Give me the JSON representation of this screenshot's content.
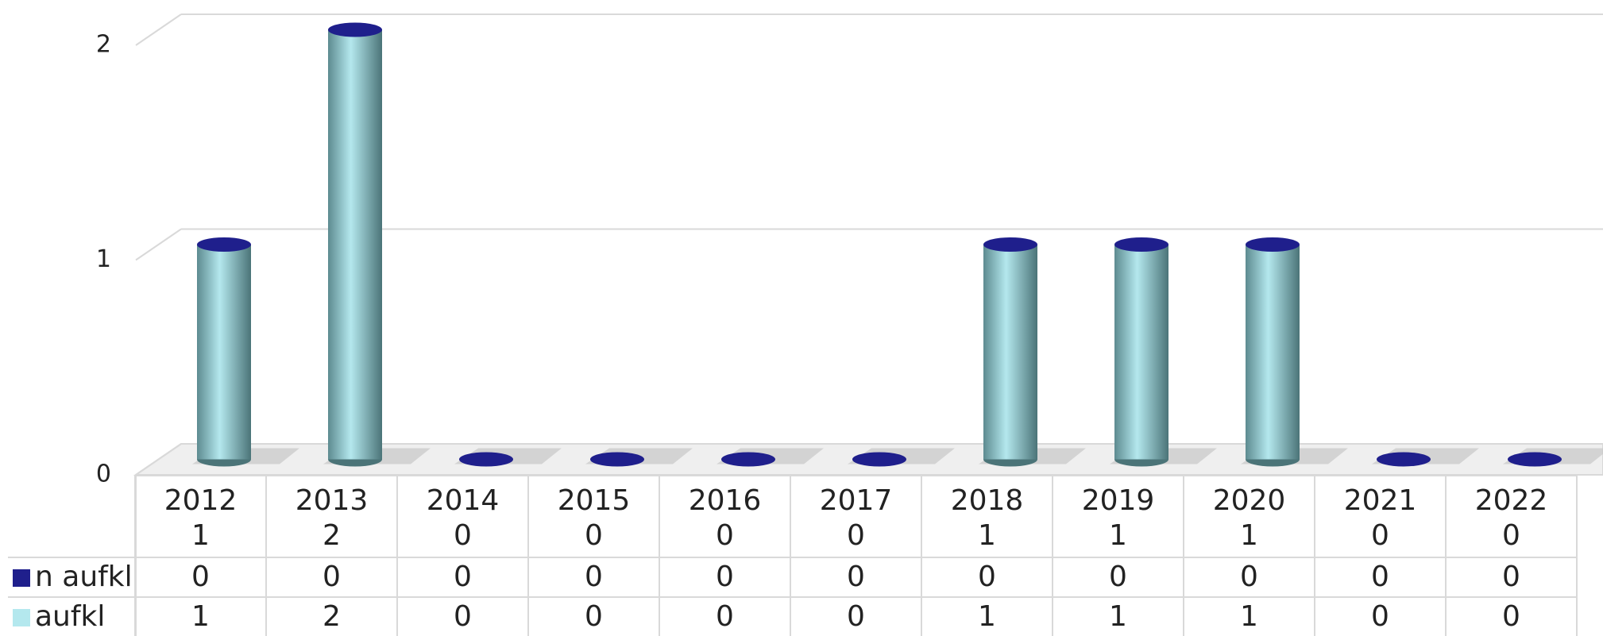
{
  "chart_data": {
    "type": "bar3d_stacked",
    "categories": [
      "2012\n1",
      "2013\n2",
      "2014\n0",
      "2015\n0",
      "2016\n0",
      "2017\n0",
      "2018\n1",
      "2019\n1",
      "2020\n1",
      "2021\n0",
      "2022\n0"
    ],
    "series": [
      {
        "name": "n aufkl",
        "color": "#1f1f8c",
        "values": [
          0,
          0,
          0,
          0,
          0,
          0,
          0,
          0,
          0,
          0,
          0
        ]
      },
      {
        "name": "aufkl",
        "color": "#b4e8ee",
        "values": [
          1,
          2,
          0,
          0,
          0,
          0,
          1,
          1,
          1,
          0,
          0
        ]
      }
    ],
    "ylim": [
      0,
      2
    ],
    "yticks": [
      0,
      1,
      2
    ],
    "grid": true,
    "data_table": true
  }
}
